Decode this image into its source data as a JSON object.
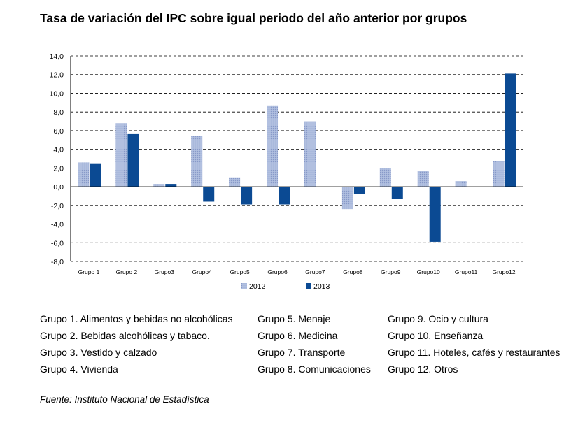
{
  "chart_data": {
    "type": "bar",
    "title": "Tasa de variación del IPC sobre igual periodo del año anterior por grupos",
    "categories": [
      "Grupo 1",
      "Grupo 2",
      "Grupo3",
      "Grupo4",
      "Grupo5",
      "Grupo6",
      "Grupo7",
      "Grupo8",
      "Grupo9",
      "Grupo10",
      "Grupo11",
      "Grupo12"
    ],
    "series": [
      {
        "name": "2012",
        "values": [
          2.6,
          6.8,
          0.3,
          5.4,
          1.0,
          8.7,
          7.0,
          -2.4,
          2.0,
          1.7,
          0.6,
          2.7
        ]
      },
      {
        "name": "2013",
        "values": [
          2.5,
          5.7,
          0.3,
          -1.6,
          -1.9,
          -1.9,
          0.0,
          -0.8,
          -1.3,
          -5.9,
          0.0,
          12.1
        ]
      }
    ],
    "colors": {
      "2012": "#a9b9dc",
      "2013": "#0b4a93"
    },
    "yticks": [
      "14,0",
      "12,0",
      "10,0",
      "8,0",
      "6,0",
      "4,0",
      "2,0",
      "0,0",
      "-2,0",
      "-4,0",
      "-6,0",
      "-8,0"
    ],
    "ylim": [
      -8,
      14
    ],
    "grid": "horizontal-dashed",
    "legend_position": "bottom"
  },
  "group_legend": {
    "col1": [
      "Grupo 1. Alimentos y bebidas no alcohólicas",
      "Grupo 2. Bebidas alcohólicas y  tabaco.",
      "Grupo 3. Vestido y calzado",
      "Grupo 4. Vivienda"
    ],
    "col2": [
      "Grupo 5. Menaje",
      "Grupo 6. Medicina",
      "Grupo 7. Transporte",
      "Grupo 8. Comunicaciones"
    ],
    "col3": [
      "Grupo 9. Ocio y cultura",
      "Grupo 10. Enseñanza",
      "Grupo 11. Hoteles, cafés y restaurantes",
      "Grupo 12. Otros"
    ]
  },
  "source": "Fuente: Instituto Nacional de Estadística"
}
